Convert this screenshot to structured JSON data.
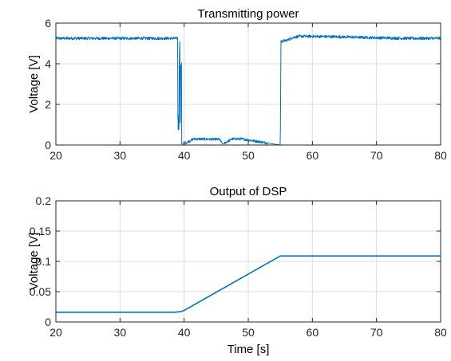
{
  "colors": {
    "series": "#0072BD",
    "grid": "#dcdcdc",
    "axis": "#262626"
  },
  "chart_data": [
    {
      "type": "line",
      "title": "Transmitting power",
      "xlabel": "",
      "ylabel": "Voltage [V]",
      "xlim": [
        20,
        80
      ],
      "ylim": [
        0,
        6
      ],
      "xticks": [
        20,
        30,
        40,
        50,
        60,
        70,
        80
      ],
      "yticks": [
        0,
        2,
        4,
        6
      ],
      "grid": true,
      "series": [
        {
          "x": [
            20,
            39,
            39.1,
            40,
            40.1,
            41.5,
            45.5,
            46,
            47.5,
            49,
            55,
            55.1,
            56,
            57,
            58,
            60,
            65,
            70,
            75,
            80
          ],
          "y": [
            5.25,
            5.25,
            0.05,
            0.05,
            0.08,
            0.3,
            0.28,
            0.05,
            0.3,
            0.3,
            0.0,
            5.1,
            5.15,
            5.3,
            5.35,
            5.35,
            5.32,
            5.28,
            5.25,
            5.25
          ],
          "noise": 0.07
        }
      ]
    },
    {
      "type": "line",
      "title": "Output of DSP",
      "xlabel": "Time [s]",
      "ylabel": "Voltage [V]",
      "xlim": [
        20,
        80
      ],
      "ylim": [
        0,
        0.2
      ],
      "xticks": [
        20,
        30,
        40,
        50,
        60,
        70,
        80
      ],
      "yticks": [
        0,
        0.05,
        0.1,
        0.15,
        0.2
      ],
      "grid": true,
      "series": [
        {
          "x": [
            20,
            38.5,
            39.5,
            40,
            55,
            80
          ],
          "y": [
            0.016,
            0.016,
            0.017,
            0.019,
            0.109,
            0.109
          ],
          "noise": 0.0
        }
      ]
    }
  ]
}
